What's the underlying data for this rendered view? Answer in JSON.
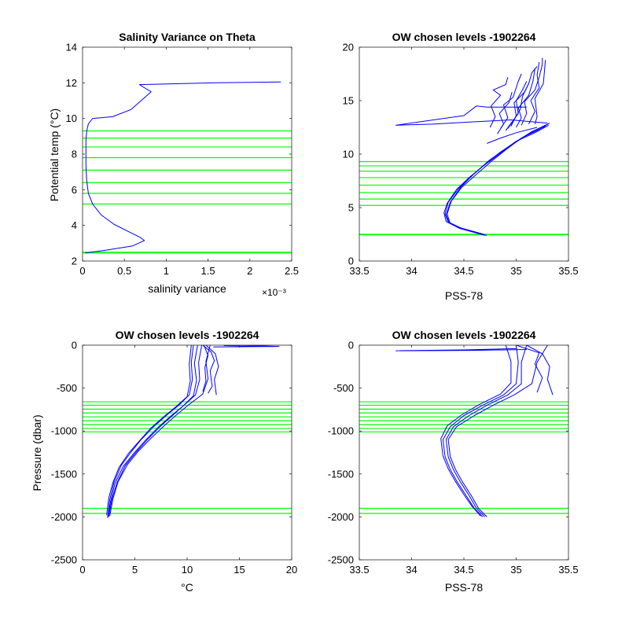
{
  "chart_data": [
    {
      "type": "line",
      "title": "Salinity Variance on Theta",
      "xlabel": "salinity variance",
      "ylabel": "Potential temp (°C)",
      "x_exponent_label": "×10⁻³",
      "xlim": [
        0,
        2.5
      ],
      "ylim": [
        2,
        14
      ],
      "xticks": [
        0,
        0.5,
        1,
        1.5,
        2,
        2.5
      ],
      "xtick_labels": [
        "0",
        "0.5",
        "1",
        "1.5",
        "2",
        "2.5"
      ],
      "yticks": [
        2,
        4,
        6,
        8,
        10,
        12,
        14
      ],
      "ytick_labels": [
        "2",
        "4",
        "6",
        "8",
        "10",
        "12",
        "14"
      ],
      "grid": false,
      "series": [
        {
          "color": "#0000ff",
          "x": [
            2.37,
            1.6,
            0.68,
            0.73,
            0.82,
            0.58,
            0.36,
            0.12,
            0.07,
            0.05,
            0.04,
            0.04,
            0.04,
            0.05,
            0.07,
            0.12,
            0.22,
            0.38,
            0.55,
            0.68,
            0.74,
            0.6,
            0.3,
            0.1,
            0.03
          ],
          "y": [
            12.05,
            12.0,
            11.9,
            11.75,
            11.5,
            10.5,
            10.1,
            10.0,
            9.7,
            9.3,
            8.8,
            8.2,
            7.4,
            6.5,
            5.8,
            5.2,
            4.6,
            4.05,
            3.65,
            3.35,
            3.15,
            2.85,
            2.62,
            2.5,
            2.45
          ]
        }
      ],
      "hlines": {
        "color": "#00ff00",
        "values": [
          9.3,
          8.9,
          8.4,
          7.8,
          7.1,
          6.4,
          5.8,
          5.2,
          2.5,
          2.45
        ]
      }
    },
    {
      "type": "line",
      "title": "OW chosen levels -1902264",
      "xlabel": "PSS-78",
      "ylabel": "",
      "xlim": [
        33.5,
        35.5
      ],
      "ylim": [
        0,
        20
      ],
      "xticks": [
        33.5,
        34,
        34.5,
        35,
        35.5
      ],
      "xtick_labels": [
        "33.5",
        "34",
        "34.5",
        "35",
        "35.5"
      ],
      "yticks": [
        0,
        5,
        10,
        15,
        20
      ],
      "ytick_labels": [
        "0",
        "5",
        "10",
        "15",
        "20"
      ],
      "grid": false,
      "series": [
        {
          "color": "#0000ff",
          "x": [
            34.7,
            34.48,
            34.35,
            34.32,
            34.35,
            34.45,
            34.58,
            34.72,
            34.85,
            35.02,
            35.15,
            35.3
          ],
          "y": [
            2.4,
            3.0,
            3.6,
            4.4,
            5.5,
            6.8,
            8.0,
            9.2,
            10.2,
            11.3,
            12.1,
            12.8
          ]
        },
        {
          "color": "#0000ff",
          "x": [
            34.72,
            34.5,
            34.37,
            34.34,
            34.38,
            34.48,
            34.62,
            34.76,
            34.9,
            35.05,
            35.2,
            35.32
          ],
          "y": [
            2.4,
            2.95,
            3.5,
            4.4,
            5.6,
            6.9,
            8.1,
            9.3,
            10.4,
            11.5,
            12.2,
            12.9
          ]
        },
        {
          "color": "#0000ff",
          "x": [
            34.7,
            34.46,
            34.33,
            34.31,
            34.34,
            34.43,
            34.56,
            34.7,
            34.84,
            34.98,
            35.12,
            35.28
          ],
          "y": [
            2.45,
            3.05,
            3.7,
            4.5,
            5.4,
            6.7,
            7.9,
            9.0,
            10.0,
            11.0,
            11.9,
            12.6
          ]
        },
        {
          "color": "#0000ff",
          "x": [
            34.69,
            34.47,
            34.36,
            34.33,
            34.37,
            34.47,
            34.6,
            34.74,
            34.87,
            35.0,
            35.18,
            35.31
          ],
          "y": [
            2.5,
            3.1,
            3.6,
            4.3,
            5.5,
            6.9,
            8.2,
            9.4,
            10.3,
            11.2,
            12.0,
            12.7
          ]
        },
        {
          "color": "#0000ff",
          "x": [
            35.3,
            34.95,
            34.55,
            34.2,
            33.85,
            34.5,
            34.62,
            34.72,
            35.1
          ],
          "y": [
            12.9,
            13.2,
            13.0,
            12.8,
            12.7,
            13.6,
            14.5,
            14.4,
            14.4
          ]
        },
        {
          "color": "#0000ff",
          "x": [
            35.2,
            35.0,
            34.85,
            34.72
          ],
          "y": [
            12.5,
            12.0,
            11.5,
            11.0
          ]
        },
        {
          "color": "#0000ff",
          "x": [
            34.75,
            34.8,
            34.76,
            34.85,
            34.78,
            34.9,
            34.92
          ],
          "y": [
            12.5,
            13.5,
            14.5,
            15.5,
            16.0,
            16.5,
            17.2
          ]
        },
        {
          "color": "#0000ff",
          "x": [
            34.85,
            34.92,
            34.88,
            34.97,
            35.02,
            35.05
          ],
          "y": [
            12.4,
            13.4,
            14.6,
            15.3,
            16.8,
            17.5
          ]
        },
        {
          "color": "#0000ff",
          "x": [
            34.95,
            35.0,
            34.98,
            35.08,
            35.12,
            35.15,
            35.2
          ],
          "y": [
            12.6,
            13.6,
            14.8,
            15.8,
            16.6,
            17.6,
            18.2
          ]
        },
        {
          "color": "#0000ff",
          "x": [
            35.05,
            35.1,
            35.08,
            35.18,
            35.22,
            35.25,
            35.25
          ],
          "y": [
            12.7,
            13.8,
            14.9,
            16.0,
            17.2,
            18.4,
            19.0
          ]
        },
        {
          "color": "#0000ff",
          "x": [
            35.12,
            35.18,
            35.14,
            35.22,
            35.2,
            35.22
          ],
          "y": [
            12.8,
            14.0,
            15.0,
            16.2,
            17.4,
            18.6
          ]
        },
        {
          "color": "#0000ff",
          "x": [
            34.9,
            34.96,
            35.02,
            35.0,
            35.06,
            35.1
          ],
          "y": [
            12.2,
            13.0,
            13.8,
            15.0,
            16.0,
            16.8
          ]
        },
        {
          "color": "#0000ff",
          "x": [
            34.82,
            34.88,
            34.84,
            34.93,
            34.96
          ],
          "y": [
            11.9,
            12.8,
            13.8,
            14.8,
            15.8
          ]
        },
        {
          "color": "#0000ff",
          "x": [
            35.18,
            35.2,
            35.18,
            35.26,
            35.28
          ],
          "y": [
            12.8,
            13.5,
            15.2,
            16.6,
            18.8
          ]
        },
        {
          "color": "#0000ff",
          "x": [
            35.0,
            35.05,
            35.02,
            35.12,
            35.16,
            35.18
          ],
          "y": [
            12.5,
            13.4,
            14.3,
            15.5,
            16.8,
            18.0
          ]
        },
        {
          "color": "#0000ff",
          "x": [
            34.92,
            34.98,
            35.04,
            35.06,
            35.12
          ],
          "y": [
            12.4,
            13.2,
            14.2,
            15.4,
            16.6
          ]
        }
      ],
      "hlines": {
        "color": "#00ff00",
        "values": [
          9.3,
          8.9,
          8.4,
          7.8,
          7.1,
          6.4,
          5.8,
          5.2,
          2.5,
          2.45
        ]
      }
    },
    {
      "type": "line",
      "title": "OW chosen levels -1902264",
      "xlabel": "°C",
      "ylabel": "Pressure (dbar)",
      "xlim": [
        0,
        20
      ],
      "ylim": [
        -2500,
        0
      ],
      "xticks": [
        0,
        5,
        10,
        15,
        20
      ],
      "xtick_labels": [
        "0",
        "5",
        "10",
        "15",
        "20"
      ],
      "yticks": [
        -2500,
        -2000,
        -1500,
        -1000,
        -500,
        0
      ],
      "ytick_labels": [
        "-2500",
        "-2000",
        "-1500",
        "-1000",
        "-500",
        "0"
      ],
      "grid": false,
      "series": [
        {
          "color": "#0000ff",
          "x": [
            2.4,
            2.6,
            3.0,
            3.7,
            4.6,
            5.6,
            6.8,
            8.0,
            9.2,
            10.2,
            10.5,
            10.4,
            10.6
          ],
          "y": [
            -2000,
            -1800,
            -1600,
            -1400,
            -1250,
            -1100,
            -950,
            -820,
            -700,
            -580,
            -400,
            -200,
            0
          ]
        },
        {
          "color": "#0000ff",
          "x": [
            2.5,
            2.8,
            3.3,
            4.1,
            5.1,
            6.2,
            7.4,
            8.6,
            9.7,
            10.8,
            11.2,
            11.1,
            11.4
          ],
          "y": [
            -2000,
            -1800,
            -1600,
            -1400,
            -1250,
            -1100,
            -950,
            -820,
            -700,
            -580,
            -400,
            -200,
            0
          ]
        },
        {
          "color": "#0000ff",
          "x": [
            2.3,
            2.5,
            2.9,
            3.5,
            4.4,
            5.4,
            6.5,
            7.7,
            8.9,
            10.0,
            10.3,
            10.2,
            10.4
          ],
          "y": [
            -1980,
            -1780,
            -1600,
            -1420,
            -1260,
            -1120,
            -970,
            -840,
            -720,
            -600,
            -420,
            -220,
            0
          ]
        },
        {
          "color": "#0000ff",
          "x": [
            2.6,
            2.9,
            3.4,
            4.3,
            5.3,
            6.5,
            7.8,
            9.0,
            10.2,
            11.5,
            12.0,
            11.8,
            12.2
          ],
          "y": [
            -1990,
            -1790,
            -1590,
            -1390,
            -1240,
            -1090,
            -940,
            -810,
            -690,
            -570,
            -390,
            -190,
            0
          ]
        },
        {
          "color": "#0000ff",
          "x": [
            2.4,
            2.7,
            3.1,
            3.9,
            4.9,
            6.0,
            7.2,
            8.4,
            9.6,
            10.6,
            10.9,
            10.7,
            11.0
          ],
          "y": [
            -2010,
            -1810,
            -1610,
            -1410,
            -1260,
            -1110,
            -960,
            -830,
            -710,
            -590,
            -410,
            -210,
            0
          ]
        },
        {
          "color": "#0000ff",
          "x": [
            12.8,
            12.6,
            13.0,
            12.7,
            11.8
          ],
          "y": [
            -580,
            -400,
            -250,
            -100,
            0
          ]
        },
        {
          "color": "#0000ff",
          "x": [
            12.0,
            12.4,
            12.2,
            12.6,
            12.3,
            11.5
          ],
          "y": [
            -560,
            -480,
            -300,
            -180,
            -80,
            0
          ]
        },
        {
          "color": "#0000ff",
          "x": [
            11.5,
            11.8,
            11.7,
            12.0,
            11.6
          ],
          "y": [
            -540,
            -420,
            -260,
            -120,
            0
          ]
        },
        {
          "color": "#0000ff",
          "x": [
            13.5,
            15.2,
            17.0,
            18.8,
            12.5
          ],
          "y": [
            -5,
            -10,
            -8,
            -15,
            -20
          ]
        }
      ],
      "hlines": {
        "color": "#00ff00",
        "values": [
          -660,
          -700,
          -745,
          -790,
          -835,
          -880,
          -925,
          -970,
          -1010,
          -1900,
          -1960
        ]
      }
    },
    {
      "type": "line",
      "title": "OW chosen levels -1902264",
      "xlabel": "PSS-78",
      "ylabel": "",
      "xlim": [
        33.5,
        35.5
      ],
      "ylim": [
        -2500,
        0
      ],
      "xticks": [
        33.5,
        34,
        34.5,
        35,
        35.5
      ],
      "xtick_labels": [
        "33.5",
        "34",
        "34.5",
        "35",
        "35.5"
      ],
      "yticks": [
        -2500,
        -2000,
        -1500,
        -1000,
        -500,
        0
      ],
      "ytick_labels": [
        "-2500",
        "-2000",
        "-1500",
        "-1000",
        "-500",
        "0"
      ],
      "grid": false,
      "series": [
        {
          "color": "#0000ff",
          "x": [
            34.7,
            34.62,
            34.55,
            34.47,
            34.4,
            34.35,
            34.33,
            34.4,
            34.55,
            34.72,
            34.92,
            35.05,
            35.05,
            35.1
          ],
          "y": [
            -2000,
            -1900,
            -1750,
            -1600,
            -1450,
            -1300,
            -1100,
            -950,
            -820,
            -700,
            -580,
            -450,
            -200,
            0
          ]
        },
        {
          "color": "#0000ff",
          "x": [
            34.68,
            34.6,
            34.52,
            34.44,
            34.37,
            34.32,
            34.3,
            34.37,
            34.5,
            34.68,
            34.88,
            35.0,
            35.02,
            35.0
          ],
          "y": [
            -2000,
            -1900,
            -1750,
            -1600,
            -1450,
            -1300,
            -1100,
            -950,
            -820,
            -700,
            -580,
            -450,
            -200,
            0
          ]
        },
        {
          "color": "#0000ff",
          "x": [
            34.72,
            34.64,
            34.57,
            34.49,
            34.42,
            34.37,
            34.35,
            34.43,
            34.6,
            34.78,
            34.98,
            35.15,
            35.2,
            35.3
          ],
          "y": [
            -2000,
            -1900,
            -1750,
            -1600,
            -1450,
            -1300,
            -1100,
            -950,
            -820,
            -700,
            -580,
            -450,
            -200,
            0
          ]
        },
        {
          "color": "#0000ff",
          "x": [
            34.66,
            34.58,
            34.5,
            34.42,
            34.35,
            34.3,
            34.28,
            34.34,
            34.48,
            34.65,
            34.85,
            34.95,
            34.95,
            34.9
          ],
          "y": [
            -1990,
            -1880,
            -1740,
            -1590,
            -1440,
            -1290,
            -1090,
            -940,
            -810,
            -690,
            -570,
            -440,
            -190,
            0
          ]
        },
        {
          "color": "#0000ff",
          "x": [
            35.35,
            35.3,
            35.32,
            35.25,
            35.1
          ],
          "y": [
            -580,
            -400,
            -250,
            -100,
            0
          ]
        },
        {
          "color": "#0000ff",
          "x": [
            35.2,
            35.25,
            35.18,
            35.22,
            35.0
          ],
          "y": [
            -550,
            -380,
            -220,
            -90,
            0
          ]
        },
        {
          "color": "#0000ff",
          "x": [
            35.0,
            34.5,
            33.85,
            34.6,
            35.1
          ],
          "y": [
            -40,
            -55,
            -65,
            -60,
            -50
          ]
        }
      ],
      "hlines": {
        "color": "#00ff00",
        "values": [
          -660,
          -700,
          -745,
          -790,
          -835,
          -880,
          -925,
          -970,
          -1010,
          -1900,
          -1960
        ]
      }
    }
  ]
}
